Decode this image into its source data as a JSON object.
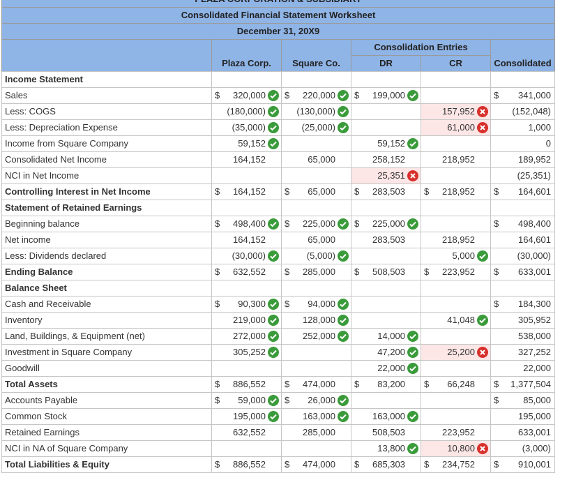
{
  "header": {
    "title_cut": "PLAZA CORPORATION & SUBSIDIARY",
    "title": "Consolidated Financial Statement Worksheet",
    "date": "December 31, 20X9",
    "group": "Consolidation Entries",
    "columns": [
      "Plaza Corp.",
      "Square Co.",
      "DR",
      "CR",
      "Consolidated"
    ]
  },
  "rows": [
    {
      "label": "Income Statement",
      "bold": true,
      "cells": [
        null,
        null,
        null,
        null,
        null
      ]
    },
    {
      "label": "Sales",
      "cells": [
        {
          "cur": "$",
          "v": "320,000",
          "ok": true
        },
        {
          "cur": "$",
          "v": "220,000",
          "ok": true
        },
        {
          "cur": "$",
          "v": "199,000",
          "ok": true
        },
        null,
        {
          "cur": "$",
          "v": "341,000"
        }
      ]
    },
    {
      "label": "Less: COGS",
      "cells": [
        {
          "v": "(180,000)",
          "ok": true
        },
        {
          "v": "(130,000)",
          "ok": true
        },
        null,
        {
          "v": "157,952",
          "ok": false
        },
        {
          "v": "(152,048)"
        }
      ]
    },
    {
      "label": "Less: Depreciation Expense",
      "cells": [
        {
          "v": "(35,000)",
          "ok": true
        },
        {
          "v": "(25,000)",
          "ok": true
        },
        null,
        {
          "v": "61,000",
          "ok": false
        },
        {
          "v": "1,000"
        }
      ]
    },
    {
      "label": "Income from Square Company",
      "cells": [
        {
          "v": "59,152",
          "ok": true
        },
        null,
        {
          "v": "59,152",
          "ok": true
        },
        null,
        {
          "v": "0"
        }
      ]
    },
    {
      "label": "Consolidated Net Income",
      "cells": [
        {
          "v": "164,152"
        },
        {
          "v": "65,000"
        },
        {
          "v": "258,152"
        },
        {
          "v": "218,952"
        },
        {
          "v": "189,952"
        }
      ]
    },
    {
      "label": "NCI in Net Income",
      "cells": [
        null,
        null,
        {
          "v": "25,351",
          "ok": false
        },
        null,
        {
          "v": "(25,351)"
        }
      ]
    },
    {
      "label": "Controlling Interest in Net Income",
      "bold": true,
      "cells": [
        {
          "cur": "$",
          "v": "164,152"
        },
        {
          "cur": "$",
          "v": "65,000"
        },
        {
          "cur": "$",
          "v": "283,503"
        },
        {
          "cur": "$",
          "v": "218,952"
        },
        {
          "cur": "$",
          "v": "164,601"
        }
      ]
    },
    {
      "label": "Statement of Retained Earnings",
      "bold": true,
      "cells": [
        null,
        null,
        null,
        null,
        null
      ]
    },
    {
      "label": "Beginning balance",
      "cells": [
        {
          "cur": "$",
          "v": "498,400",
          "ok": true
        },
        {
          "cur": "$",
          "v": "225,000",
          "ok": true
        },
        {
          "cur": "$",
          "v": "225,000",
          "ok": true
        },
        null,
        {
          "cur": "$",
          "v": "498,400"
        }
      ]
    },
    {
      "label": "Net income",
      "cells": [
        {
          "v": "164,152"
        },
        {
          "v": "65,000"
        },
        {
          "v": "283,503"
        },
        {
          "v": "218,952"
        },
        {
          "v": "164,601"
        }
      ]
    },
    {
      "label": "Less: Dividends declared",
      "cells": [
        {
          "v": "(30,000)",
          "ok": true
        },
        {
          "v": "(5,000)",
          "ok": true
        },
        null,
        {
          "v": "5,000",
          "ok": true
        },
        {
          "v": "(30,000)"
        }
      ]
    },
    {
      "label": "Ending Balance",
      "bold": true,
      "cells": [
        {
          "cur": "$",
          "v": "632,552"
        },
        {
          "cur": "$",
          "v": "285,000"
        },
        {
          "cur": "$",
          "v": "508,503"
        },
        {
          "cur": "$",
          "v": "223,952"
        },
        {
          "cur": "$",
          "v": "633,001"
        }
      ]
    },
    {
      "label": "Balance Sheet",
      "bold": true,
      "cells": [
        null,
        null,
        null,
        null,
        null
      ]
    },
    {
      "label": "Cash and Receivable",
      "cells": [
        {
          "cur": "$",
          "v": "90,300",
          "ok": true
        },
        {
          "cur": "$",
          "v": "94,000",
          "ok": true
        },
        null,
        null,
        {
          "cur": "$",
          "v": "184,300"
        }
      ]
    },
    {
      "label": "Inventory",
      "cells": [
        {
          "v": "219,000",
          "ok": true
        },
        {
          "v": "128,000",
          "ok": true
        },
        null,
        {
          "v": "41,048",
          "ok": true
        },
        {
          "v": "305,952"
        }
      ]
    },
    {
      "label": "Land, Buildings, & Equipment (net)",
      "cells": [
        {
          "v": "272,000",
          "ok": true
        },
        {
          "v": "252,000",
          "ok": true
        },
        {
          "v": "14,000",
          "ok": true
        },
        null,
        {
          "v": "538,000"
        }
      ]
    },
    {
      "label": "Investment in Square Company",
      "cells": [
        {
          "v": "305,252",
          "ok": true
        },
        null,
        {
          "v": "47,200",
          "ok": true
        },
        {
          "v": "25,200",
          "ok": false
        },
        {
          "v": "327,252"
        }
      ]
    },
    {
      "label": "Goodwill",
      "cells": [
        null,
        null,
        {
          "v": "22,000",
          "ok": true
        },
        null,
        {
          "v": "22,000"
        }
      ]
    },
    {
      "label": "Total Assets",
      "bold": true,
      "cells": [
        {
          "cur": "$",
          "v": "886,552"
        },
        {
          "cur": "$",
          "v": "474,000"
        },
        {
          "cur": "$",
          "v": "83,200"
        },
        {
          "cur": "$",
          "v": "66,248"
        },
        {
          "cur": "$",
          "v": "1,377,504"
        }
      ]
    },
    {
      "label": "Accounts Payable",
      "cells": [
        {
          "cur": "$",
          "v": "59,000",
          "ok": true
        },
        {
          "cur": "$",
          "v": "26,000",
          "ok": true
        },
        null,
        null,
        {
          "cur": "$",
          "v": "85,000"
        }
      ]
    },
    {
      "label": "Common Stock",
      "cells": [
        {
          "v": "195,000",
          "ok": true
        },
        {
          "v": "163,000",
          "ok": true
        },
        {
          "v": "163,000",
          "ok": true
        },
        null,
        {
          "v": "195,000"
        }
      ]
    },
    {
      "label": "Retained Earnings",
      "cells": [
        {
          "v": "632,552"
        },
        {
          "v": "285,000"
        },
        {
          "v": "508,503"
        },
        {
          "v": "223,952"
        },
        {
          "v": "633,001"
        }
      ]
    },
    {
      "label": "NCI in NA of Square Company",
      "cells": [
        null,
        null,
        {
          "v": "13,800",
          "ok": true
        },
        {
          "v": "10,800",
          "ok": false
        },
        {
          "v": "(3,000)"
        }
      ]
    },
    {
      "label": "Total Liabilities & Equity",
      "bold": true,
      "cells": [
        {
          "cur": "$",
          "v": "886,552"
        },
        {
          "cur": "$",
          "v": "474,000"
        },
        {
          "cur": "$",
          "v": "685,303"
        },
        {
          "cur": "$",
          "v": "234,752"
        },
        {
          "cur": "$",
          "v": "910,001"
        }
      ]
    }
  ]
}
